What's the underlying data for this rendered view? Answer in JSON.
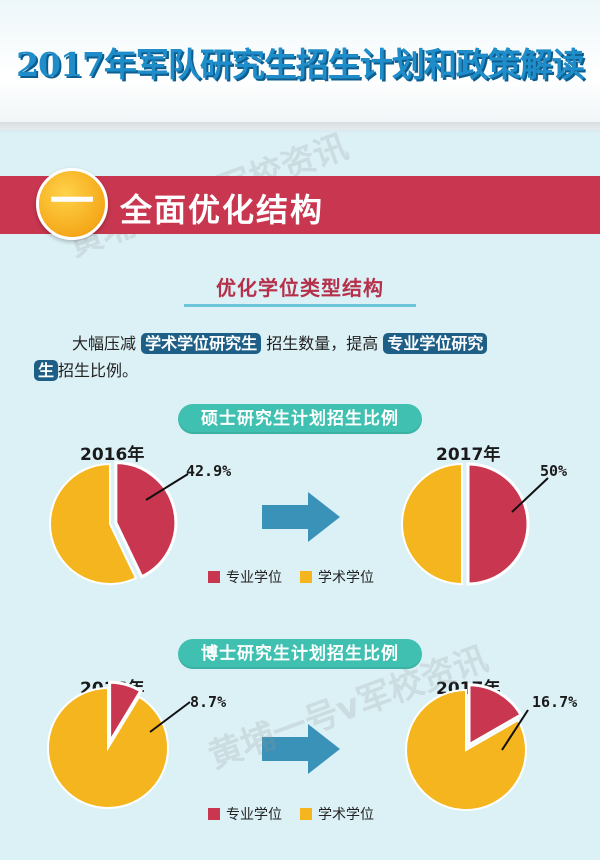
{
  "header": {
    "title": "2017年军队研究生招生计划和政策解读"
  },
  "section": {
    "number": "一",
    "title": "全面优化结构"
  },
  "subsection": {
    "title": "优化学位类型结构"
  },
  "paragraph": {
    "p1": "大幅压减",
    "hl1": "学术学位研究生",
    "p2": "招生数量，提高",
    "hl2a": "专业学位研究",
    "hl2b": "生",
    "p3": "招生比例。"
  },
  "watermark": {
    "text1": "黄埔一号v军校资讯",
    "text2": "黄埔一号v军校资讯"
  },
  "colors": {
    "professional": "#c8374f",
    "academic": "#f5b51f",
    "arrow": "#3b92b9",
    "pill": "#3fc0b0"
  },
  "chart_data": [
    {
      "type": "pie",
      "title": "硕士研究生计划招生比例",
      "legend": [
        "专业学位",
        "学术学位"
      ],
      "pies": [
        {
          "year": "2016年",
          "label": "42.9%",
          "slices": [
            {
              "name": "专业学位",
              "value": 42.9
            },
            {
              "name": "学术学位",
              "value": 57.1
            }
          ]
        },
        {
          "year": "2017年",
          "label": "50%",
          "slices": [
            {
              "name": "专业学位",
              "value": 50
            },
            {
              "name": "学术学位",
              "value": 50
            }
          ]
        }
      ]
    },
    {
      "type": "pie",
      "title": "博士研究生计划招生比例",
      "legend": [
        "专业学位",
        "学术学位"
      ],
      "pies": [
        {
          "year": "2016年",
          "label": "8.7%",
          "slices": [
            {
              "name": "专业学位",
              "value": 8.7
            },
            {
              "name": "学术学位",
              "value": 91.3
            }
          ]
        },
        {
          "year": "2017年",
          "label": "16.7%",
          "slices": [
            {
              "name": "专业学位",
              "value": 16.7
            },
            {
              "name": "学术学位",
              "value": 83.3
            }
          ]
        }
      ]
    }
  ]
}
